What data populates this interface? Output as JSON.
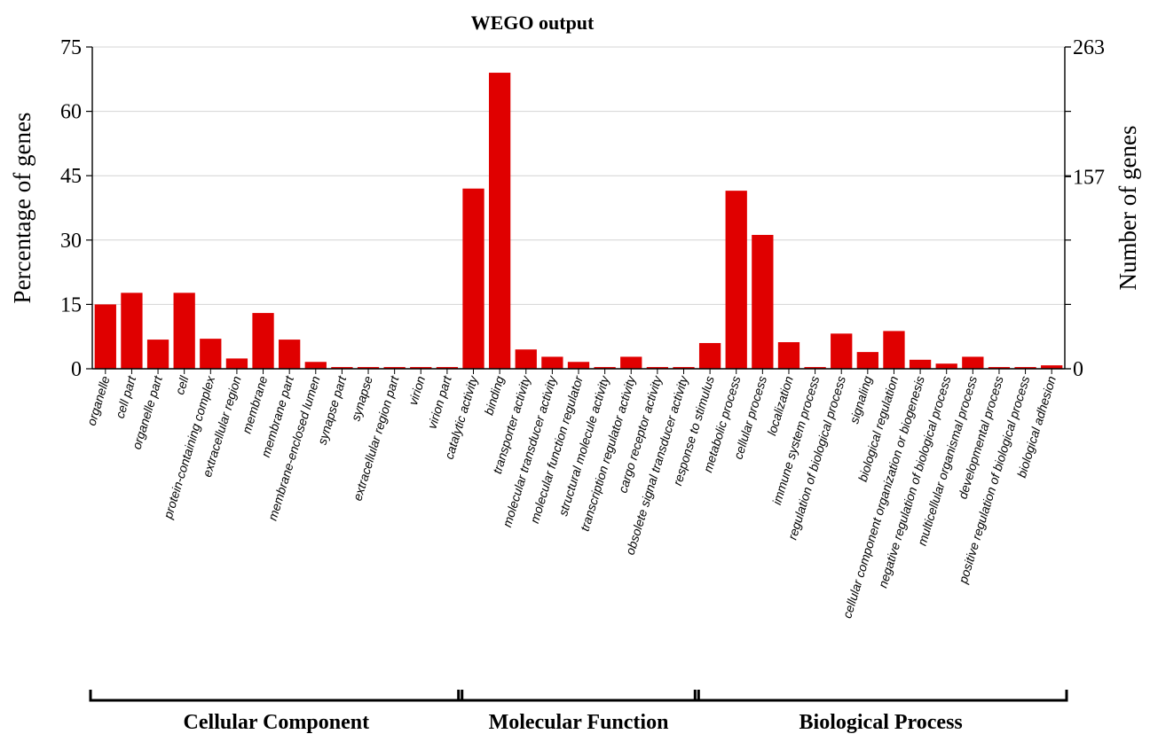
{
  "chart_data": {
    "type": "bar",
    "title": "WEGO output",
    "ylabel_left": "Percentage of genes",
    "ylabel_right": "Number of genes",
    "ylim": [
      0,
      75
    ],
    "yticks_left": [
      "0",
      "15",
      "30",
      "45",
      "60",
      "75"
    ],
    "yticks_right": [
      "0",
      "157",
      "263"
    ],
    "grid": true,
    "bar_color": "#e00000",
    "categories": [
      "organelle",
      "cell part",
      "organelle part",
      "cell",
      "protein-containing complex",
      "extracellular region",
      "membrane",
      "membrane part",
      "membrane-enclosed lumen",
      "synapse part",
      "synapse",
      "extracellular region part",
      "virion",
      "virion part",
      "catalytic activity",
      "binding",
      "transporter activity",
      "molecular transducer activity",
      "molecular function regulator",
      "structural molecule activity",
      "transcription regulator activity",
      "cargo receptor activity",
      "obsolete signal transducer activity",
      "response to stimulus",
      "metabolic process",
      "cellular process",
      "localization",
      "immune system process",
      "regulation of biological process",
      "signaling",
      "biological regulation",
      "cellular component organization or biogenesis",
      "negative regulation of biological process",
      "multicellular organismal process",
      "developmental process",
      "positive regulation of biological process",
      "biological adhesion"
    ],
    "values": [
      15.0,
      17.7,
      6.8,
      17.7,
      7.0,
      2.4,
      13.0,
      6.8,
      1.6,
      0.4,
      0.4,
      0.4,
      0.4,
      0.4,
      42.0,
      69.0,
      4.5,
      2.8,
      1.6,
      0.4,
      2.8,
      0.4,
      0.4,
      6.0,
      41.5,
      31.2,
      6.2,
      0.4,
      8.2,
      3.9,
      8.8,
      2.1,
      1.2,
      2.8,
      0.4,
      0.4,
      0.8
    ],
    "groups": [
      {
        "label": "Cellular Component",
        "start": 0,
        "end": 13
      },
      {
        "label": "Molecular Function",
        "start": 14,
        "end": 22
      },
      {
        "label": "Biological Process",
        "start": 23,
        "end": 36
      }
    ]
  }
}
